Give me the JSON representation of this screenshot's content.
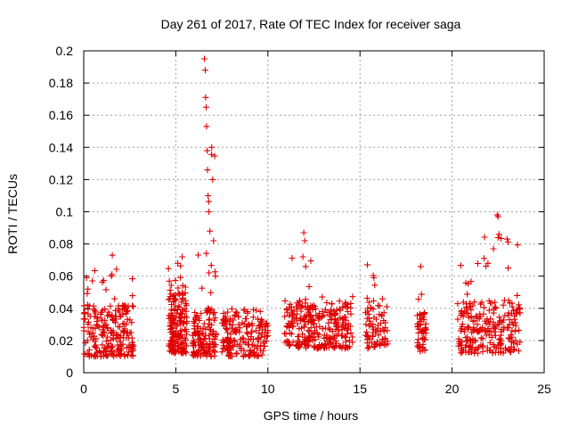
{
  "chart_data": {
    "type": "scatter",
    "title": "Day 261 of 2017, Rate Of TEC Index for receiver saga",
    "xlabel": "GPS time / hours",
    "ylabel": "ROTI / TECUs",
    "xlim": [
      0,
      25
    ],
    "ylim": [
      0,
      0.2
    ],
    "x_ticks": [
      0,
      5,
      10,
      15,
      20,
      25
    ],
    "y_ticks": [
      0,
      0.02,
      0.04,
      0.06,
      0.08,
      0.1,
      0.12,
      0.14,
      0.16,
      0.18,
      0.2
    ],
    "x_tick_labels": [
      "0",
      "5",
      "10",
      "15",
      "20",
      "25"
    ],
    "y_tick_labels": [
      "0",
      "0.02",
      "0.04",
      "0.06",
      "0.08",
      "0.1",
      "0.12",
      "0.14",
      "0.16",
      "0.18",
      "0.2"
    ],
    "grid": true,
    "marker": "+",
    "color": "#e00000",
    "clusters": [
      {
        "x": [
          0.0,
          2.7
        ],
        "y": [
          0.01,
          0.042
        ],
        "peak": 0.073,
        "n": 230
      },
      {
        "x": [
          4.6,
          5.6
        ],
        "y": [
          0.012,
          0.05
        ],
        "peak": 0.072,
        "n": 170
      },
      {
        "x": [
          5.9,
          7.2
        ],
        "y": [
          0.01,
          0.04
        ],
        "peak": 0.195,
        "n": 140
      },
      {
        "x": [
          7.5,
          10.0
        ],
        "y": [
          0.01,
          0.035
        ],
        "peak": 0.042,
        "n": 190
      },
      {
        "x": [
          10.9,
          13.0
        ],
        "y": [
          0.015,
          0.045
        ],
        "peak": 0.087,
        "n": 170
      },
      {
        "x": [
          13.0,
          14.6
        ],
        "y": [
          0.015,
          0.043
        ],
        "peak": 0.052,
        "n": 120
      },
      {
        "x": [
          15.3,
          16.5
        ],
        "y": [
          0.015,
          0.045
        ],
        "peak": 0.067,
        "n": 80
      },
      {
        "x": [
          18.1,
          18.6
        ],
        "y": [
          0.013,
          0.04
        ],
        "peak": 0.066,
        "n": 50
      },
      {
        "x": [
          20.3,
          23.7
        ],
        "y": [
          0.012,
          0.045
        ],
        "peak": 0.098,
        "n": 240
      }
    ],
    "spikes": [
      {
        "x": 6.55,
        "y": 0.195
      },
      {
        "x": 6.6,
        "y": 0.188
      },
      {
        "x": 6.62,
        "y": 0.171
      },
      {
        "x": 6.65,
        "y": 0.165
      },
      {
        "x": 6.67,
        "y": 0.153
      },
      {
        "x": 6.7,
        "y": 0.138
      },
      {
        "x": 6.72,
        "y": 0.126
      },
      {
        "x": 6.75,
        "y": 0.11
      },
      {
        "x": 6.8,
        "y": 0.1
      },
      {
        "x": 6.85,
        "y": 0.088
      },
      {
        "x": 6.95,
        "y": 0.14
      },
      {
        "x": 7.0,
        "y": 0.12
      },
      {
        "x": 7.05,
        "y": 0.082
      },
      {
        "x": 7.15,
        "y": 0.06
      },
      {
        "x": 11.95,
        "y": 0.087
      },
      {
        "x": 12.0,
        "y": 0.082
      },
      {
        "x": 11.9,
        "y": 0.072
      },
      {
        "x": 12.05,
        "y": 0.066
      },
      {
        "x": 22.45,
        "y": 0.098
      },
      {
        "x": 22.5,
        "y": 0.097
      },
      {
        "x": 22.55,
        "y": 0.086
      },
      {
        "x": 22.5,
        "y": 0.084
      },
      {
        "x": 22.25,
        "y": 0.077
      },
      {
        "x": 21.95,
        "y": 0.068
      },
      {
        "x": 1.55,
        "y": 0.073
      },
      {
        "x": 1.5,
        "y": 0.06
      },
      {
        "x": 0.15,
        "y": 0.059
      },
      {
        "x": 5.35,
        "y": 0.072
      },
      {
        "x": 5.1,
        "y": 0.068
      },
      {
        "x": 15.4,
        "y": 0.067
      },
      {
        "x": 18.3,
        "y": 0.066
      }
    ]
  }
}
